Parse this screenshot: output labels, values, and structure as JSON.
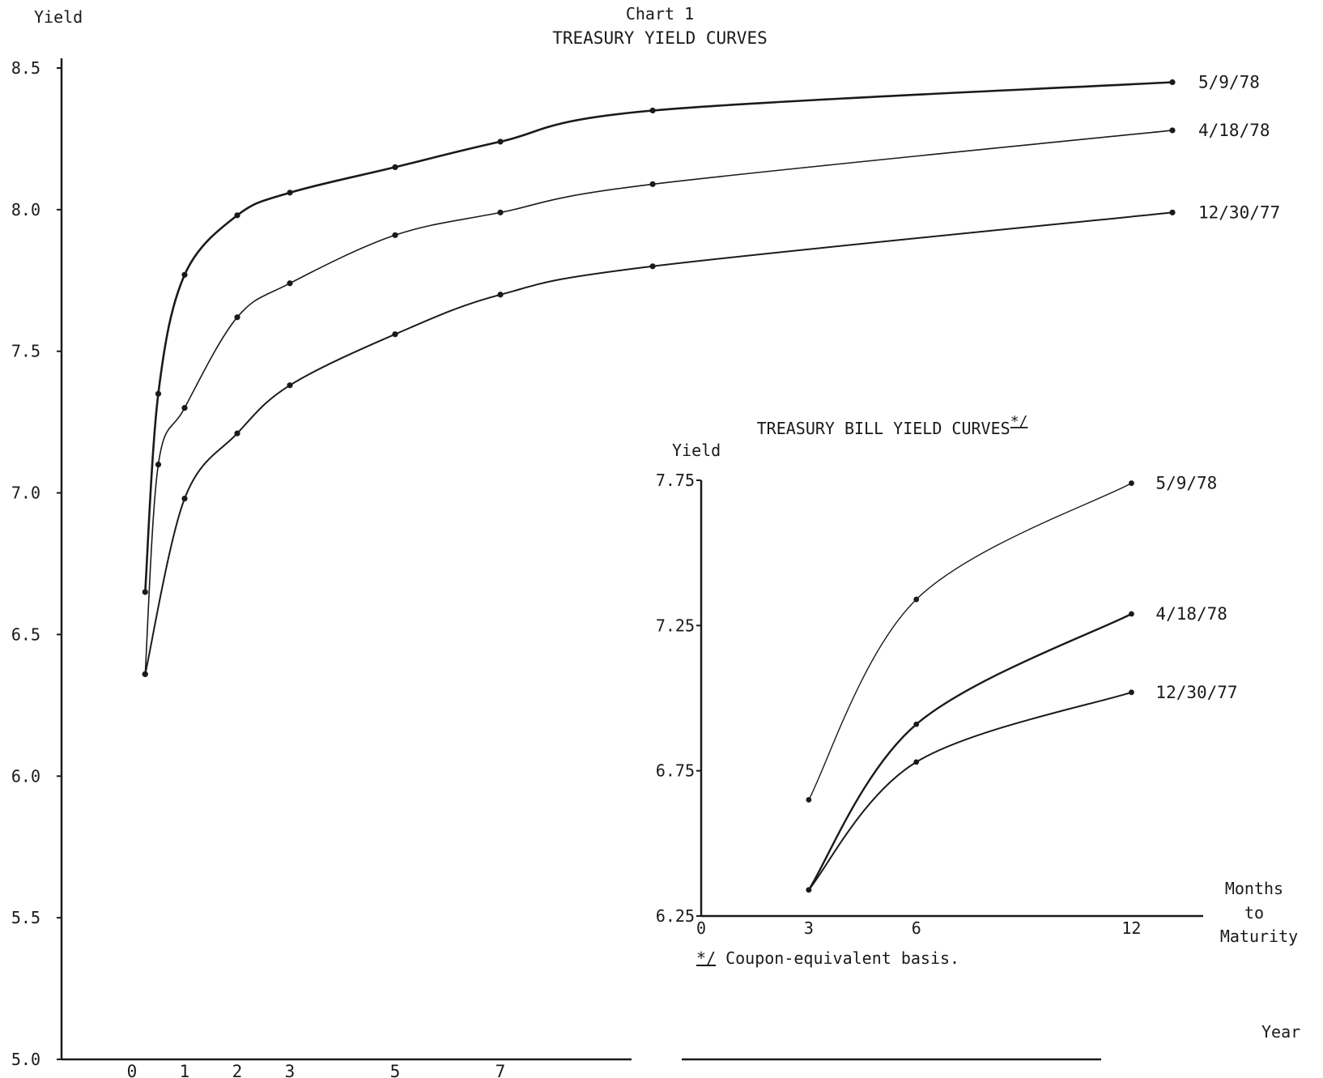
{
  "header": {
    "chart_number": "Chart 1",
    "title": "TREASURY YIELD CURVES"
  },
  "footnote": {
    "marker": "*/",
    "text": "Coupon-equivalent basis."
  },
  "chart_data": [
    {
      "id": "main",
      "type": "line",
      "title": "TREASURY YIELD CURVES",
      "ylabel": "Yield",
      "xlabel": "Year",
      "ylim": [
        5.0,
        8.5
      ],
      "yticks": [
        5.0,
        5.5,
        6.0,
        6.5,
        7.0,
        7.5,
        8.0,
        8.5
      ],
      "ytick_labels": [
        "5.0",
        "5.5",
        "6.0",
        "6.5",
        "7.0",
        "7.5",
        "8.0",
        "8.5"
      ],
      "xticks": [
        0,
        1,
        2,
        3,
        5,
        7
      ],
      "xtick_labels": [
        "0",
        "1",
        "2",
        "3",
        "5",
        "7"
      ],
      "x_axis_broken_after": 7,
      "grid": false,
      "legend": "labels at right end of each curve",
      "series": [
        {
          "name": "5/9/78",
          "x": [
            0.25,
            0.5,
            1,
            2,
            3,
            5,
            7,
            10,
            30
          ],
          "y": [
            6.65,
            7.35,
            7.77,
            7.98,
            8.06,
            8.15,
            8.24,
            8.35,
            8.45
          ]
        },
        {
          "name": "4/18/78",
          "x": [
            0.25,
            0.5,
            1,
            2,
            3,
            5,
            7,
            10,
            30
          ],
          "y": [
            6.36,
            7.1,
            7.3,
            7.62,
            7.74,
            7.91,
            7.99,
            8.09,
            8.28
          ]
        },
        {
          "name": "12/30/77",
          "x": [
            0.25,
            1,
            2,
            3,
            5,
            7,
            10,
            30
          ],
          "y": [
            6.36,
            6.98,
            7.21,
            7.38,
            7.56,
            7.7,
            7.8,
            7.99
          ]
        }
      ]
    },
    {
      "id": "inset",
      "type": "line",
      "title": "TREASURY BILL YIELD CURVES",
      "title_marker": "*/",
      "ylabel": "Yield",
      "xlabel": "Months to Maturity",
      "xlabel_lines": [
        "Months",
        "to",
        "Maturity"
      ],
      "ylim": [
        6.25,
        7.75
      ],
      "yticks": [
        6.25,
        6.75,
        7.25,
        7.75
      ],
      "ytick_labels": [
        "6.25",
        "6.75",
        "7.25",
        "7.75"
      ],
      "xlim": [
        0,
        14
      ],
      "xticks": [
        0,
        3,
        6,
        12
      ],
      "xtick_labels": [
        "0",
        "3",
        "6",
        "12"
      ],
      "grid": false,
      "legend": "labels at right end of each curve",
      "series": [
        {
          "name": "5/9/78",
          "x": [
            3,
            6,
            12
          ],
          "y": [
            6.65,
            7.34,
            7.74
          ]
        },
        {
          "name": "4/18/78",
          "x": [
            3,
            6,
            12
          ],
          "y": [
            6.34,
            6.91,
            7.29
          ]
        },
        {
          "name": "12/30/77",
          "x": [
            3,
            6,
            12
          ],
          "y": [
            6.34,
            6.78,
            7.02
          ]
        }
      ]
    }
  ]
}
